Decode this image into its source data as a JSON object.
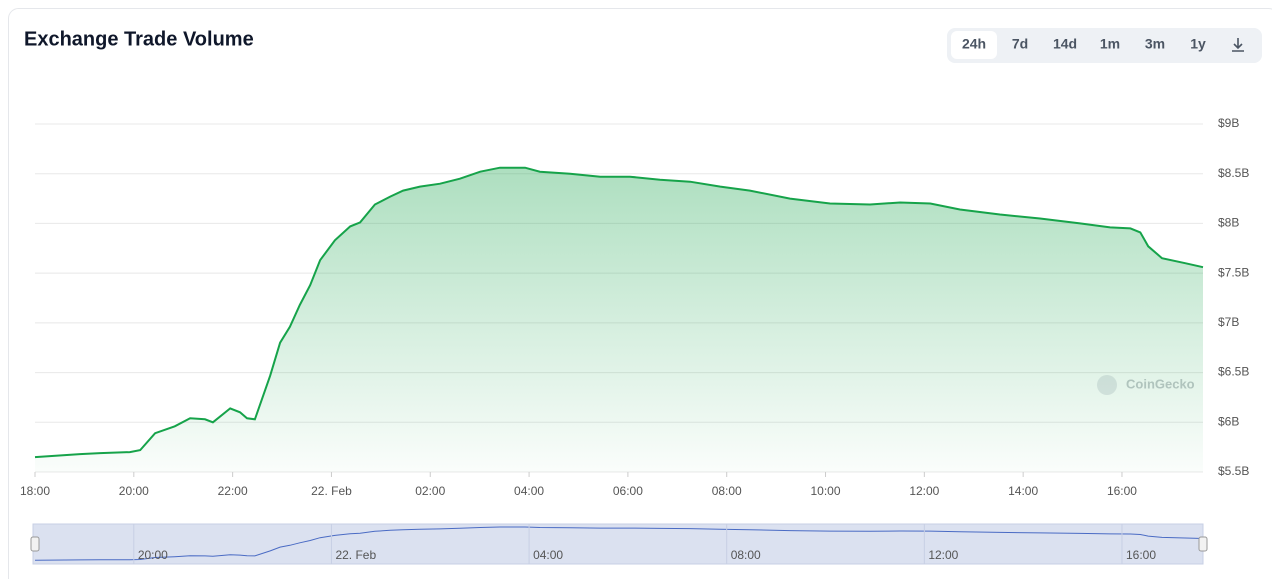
{
  "chart_data": {
    "type": "area",
    "title": "Exchange Trade Volume",
    "range_buttons": [
      "24h",
      "7d",
      "14d",
      "1m",
      "3m",
      "1y"
    ],
    "active_button": 0,
    "watermark": "CoinGecko",
    "color": "#16a34a",
    "grid": true,
    "x": [
      0,
      0.91,
      1.32,
      1.92,
      2.13,
      2.43,
      2.83,
      3.14,
      3.44,
      3.6,
      3.95,
      4.15,
      4.29,
      4.45,
      4.76,
      4.96,
      5.16,
      5.36,
      5.57,
      5.77,
      6.07,
      6.38,
      6.58,
      6.88,
      7.19,
      7.45,
      7.79,
      8.2,
      8.6,
      9.01,
      9.41,
      9.92,
      10.22,
      10.83,
      11.44,
      12.04,
      12.65,
      13.26,
      13.87,
      14.47,
      15.28,
      16.09,
      16.9,
      17.51,
      18.12,
      18.72,
      19.53,
      20.34,
      21.15,
      21.76,
      22.17,
      22.37,
      22.53,
      22.81,
      23.28,
      23.64
    ],
    "values": [
      5650000000,
      5680000000,
      5690000000,
      5700000000,
      5720000000,
      5890000000,
      5960000000,
      6040000000,
      6030000000,
      6000000000,
      6140000000,
      6100000000,
      6040000000,
      6030000000,
      6470000000,
      6800000000,
      6960000000,
      7180000000,
      7380000000,
      7630000000,
      7830000000,
      7970000000,
      8010000000,
      8190000000,
      8270000000,
      8330000000,
      8370000000,
      8400000000,
      8450000000,
      8520000000,
      8560000000,
      8560000000,
      8520000000,
      8500000000,
      8470000000,
      8470000000,
      8440000000,
      8420000000,
      8370000000,
      8330000000,
      8250000000,
      8200000000,
      8190000000,
      8210000000,
      8200000000,
      8140000000,
      8090000000,
      8050000000,
      8000000000,
      7960000000,
      7950000000,
      7910000000,
      7770000000,
      7650000000,
      7600000000,
      7560000000
    ],
    "xlim": [
      0,
      23.64
    ],
    "xticks": [
      {
        "value": 0,
        "label": "18:00"
      },
      {
        "value": 2,
        "label": "20:00"
      },
      {
        "value": 4,
        "label": "22:00"
      },
      {
        "value": 6,
        "label": "22. Feb"
      },
      {
        "value": 8,
        "label": "02:00"
      },
      {
        "value": 10,
        "label": "04:00"
      },
      {
        "value": 12,
        "label": "06:00"
      },
      {
        "value": 14,
        "label": "08:00"
      },
      {
        "value": 16,
        "label": "10:00"
      },
      {
        "value": 18,
        "label": "12:00"
      },
      {
        "value": 20,
        "label": "14:00"
      },
      {
        "value": 22,
        "label": "16:00"
      }
    ],
    "ylim": [
      5500000000,
      9000000000
    ],
    "yticks": [
      {
        "value": 5500000000,
        "label": "$5.5B"
      },
      {
        "value": 6000000000,
        "label": "$6B"
      },
      {
        "value": 6500000000,
        "label": "$6.5B"
      },
      {
        "value": 7000000000,
        "label": "$7B"
      },
      {
        "value": 7500000000,
        "label": "$7.5B"
      },
      {
        "value": 8000000000,
        "label": "$8B"
      },
      {
        "value": 8500000000,
        "label": "$8.5B"
      },
      {
        "value": 9000000000,
        "label": "$9B"
      }
    ],
    "navigator_xticks": [
      {
        "value": 2,
        "label": "20:00"
      },
      {
        "value": 6,
        "label": "22. Feb"
      },
      {
        "value": 10,
        "label": "04:00"
      },
      {
        "value": 14,
        "label": "08:00"
      },
      {
        "value": 18,
        "label": "12:00"
      },
      {
        "value": 22,
        "label": "16:00"
      }
    ]
  }
}
